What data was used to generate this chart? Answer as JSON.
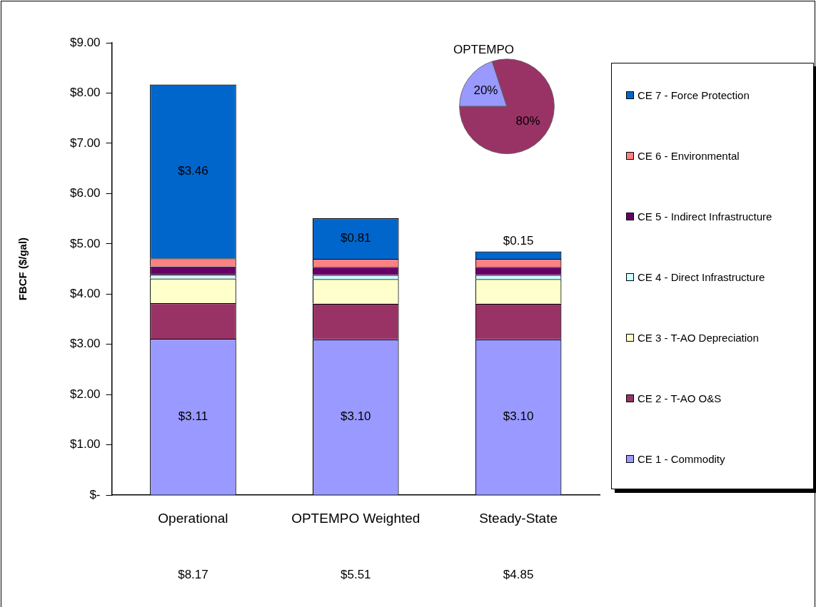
{
  "chart_data": [
    {
      "type": "bar",
      "stacked": true,
      "ylabel": "FBCF ($/gal)",
      "categories": [
        "Operational",
        "OPTEMPO Weighted",
        "Steady-State"
      ],
      "ylim": [
        0,
        9
      ],
      "yticks": [
        {
          "value": 0,
          "label": "$-"
        },
        {
          "value": 1,
          "label": "$1.00"
        },
        {
          "value": 2,
          "label": "$2.00"
        },
        {
          "value": 3,
          "label": "$3.00"
        },
        {
          "value": 4,
          "label": "$4.00"
        },
        {
          "value": 5,
          "label": "$5.00"
        },
        {
          "value": 6,
          "label": "$6.00"
        },
        {
          "value": 7,
          "label": "$7.00"
        },
        {
          "value": 8,
          "label": "$8.00"
        },
        {
          "value": 9,
          "label": "$9.00"
        }
      ],
      "grid": false,
      "legend": "right",
      "series": [
        {
          "name": "CE 1 - Commodity",
          "color": "#9999ff",
          "values": [
            3.11,
            3.1,
            3.1
          ],
          "value_labels": [
            "$3.11",
            "$3.10",
            "$3.10"
          ]
        },
        {
          "name": "CE 2 - T-AO O&S",
          "color": "#993366",
          "values": [
            0.71,
            0.71,
            0.71
          ]
        },
        {
          "name": "CE 3 - T-AO Depreciation",
          "color": "#ffffcc",
          "values": [
            0.49,
            0.49,
            0.49
          ]
        },
        {
          "name": "CE 4 - Direct Infrastructure",
          "color": "#ccffff",
          "values": [
            0.08,
            0.08,
            0.08
          ]
        },
        {
          "name": "CE 5 - Indirect Infrastructure",
          "color": "#660066",
          "values": [
            0.16,
            0.16,
            0.16
          ]
        },
        {
          "name": "CE 6 - Environmental",
          "color": "#ff8080",
          "values": [
            0.16,
            0.16,
            0.16
          ]
        },
        {
          "name": "CE 7 - Force Protection",
          "color": "#0066cc",
          "values": [
            3.46,
            0.81,
            0.15
          ],
          "value_labels": [
            "$3.46",
            "$0.81",
            "$0.15"
          ]
        }
      ],
      "annotations": [
        "$8.17",
        "$5.51",
        "$4.85"
      ]
    },
    {
      "type": "pie",
      "title": "OPTEMPO",
      "categories": [
        null,
        null
      ],
      "values": [
        20,
        80
      ],
      "colors": [
        "#9999ff",
        "#993366"
      ],
      "value_labels": [
        "20%",
        "80%"
      ]
    }
  ]
}
